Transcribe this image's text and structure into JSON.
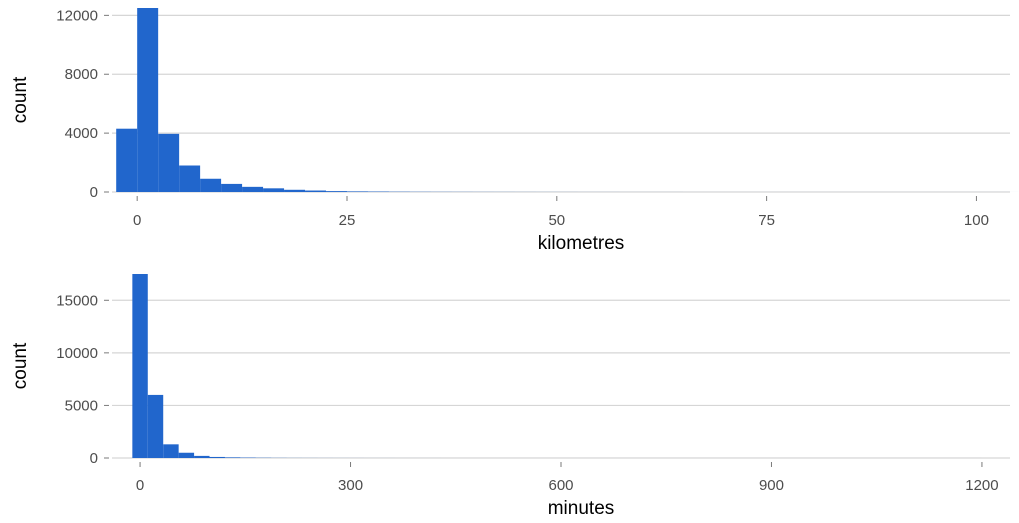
{
  "colors": {
    "bar": "#2166cc",
    "grid": "#d6d6d6",
    "tick_text": "#4d4d4d",
    "title_text": "#000000"
  },
  "chart_data": [
    {
      "type": "bar",
      "title": "",
      "xlabel": "kilometres",
      "ylabel": "count",
      "xlim": [
        -3,
        104
      ],
      "ylim": [
        0,
        12500
      ],
      "grid": "horizontal",
      "bin_width": 2.5,
      "bin_start": -2.5,
      "x_ticks": [
        0,
        25,
        50,
        75,
        100
      ],
      "x_tick_labels": [
        "0",
        "25",
        "50",
        "75",
        "100"
      ],
      "y_ticks": [
        0,
        4000,
        8000,
        12000
      ],
      "y_tick_labels": [
        "0",
        "4000",
        "8000",
        "12000"
      ],
      "values": [
        4300,
        12500,
        3950,
        1800,
        900,
        550,
        350,
        250,
        150,
        100,
        60,
        40,
        30,
        20,
        15,
        12,
        10,
        8,
        7,
        6,
        5,
        4,
        3,
        3,
        2,
        2,
        2,
        1,
        1,
        1,
        1,
        1,
        1,
        1,
        1,
        1,
        1,
        1,
        1,
        1,
        1,
        1,
        1
      ]
    },
    {
      "type": "bar",
      "title": "",
      "xlabel": "minutes",
      "ylabel": "count",
      "xlim": [
        -40,
        1240
      ],
      "ylim": [
        0,
        17500
      ],
      "grid": "horizontal",
      "bin_width": 22,
      "bin_start": -11,
      "x_ticks": [
        0,
        300,
        600,
        900,
        1200
      ],
      "x_tick_labels": [
        "0",
        "300",
        "600",
        "900",
        "1200"
      ],
      "y_ticks": [
        0,
        5000,
        10000,
        15000
      ],
      "y_tick_labels": [
        "0",
        "5000",
        "10000",
        "15000"
      ],
      "values": [
        17500,
        6000,
        1300,
        500,
        200,
        100,
        60,
        40,
        25,
        15,
        10,
        8,
        6,
        5,
        4,
        3,
        3,
        2,
        2,
        2,
        1,
        1,
        1,
        1,
        1,
        1,
        1,
        1,
        1,
        1,
        1,
        1,
        1,
        1,
        1,
        1,
        1,
        1,
        1,
        1,
        1,
        1,
        1,
        1,
        1,
        1,
        1,
        1,
        1,
        1,
        1,
        1,
        1,
        1,
        1
      ]
    }
  ]
}
